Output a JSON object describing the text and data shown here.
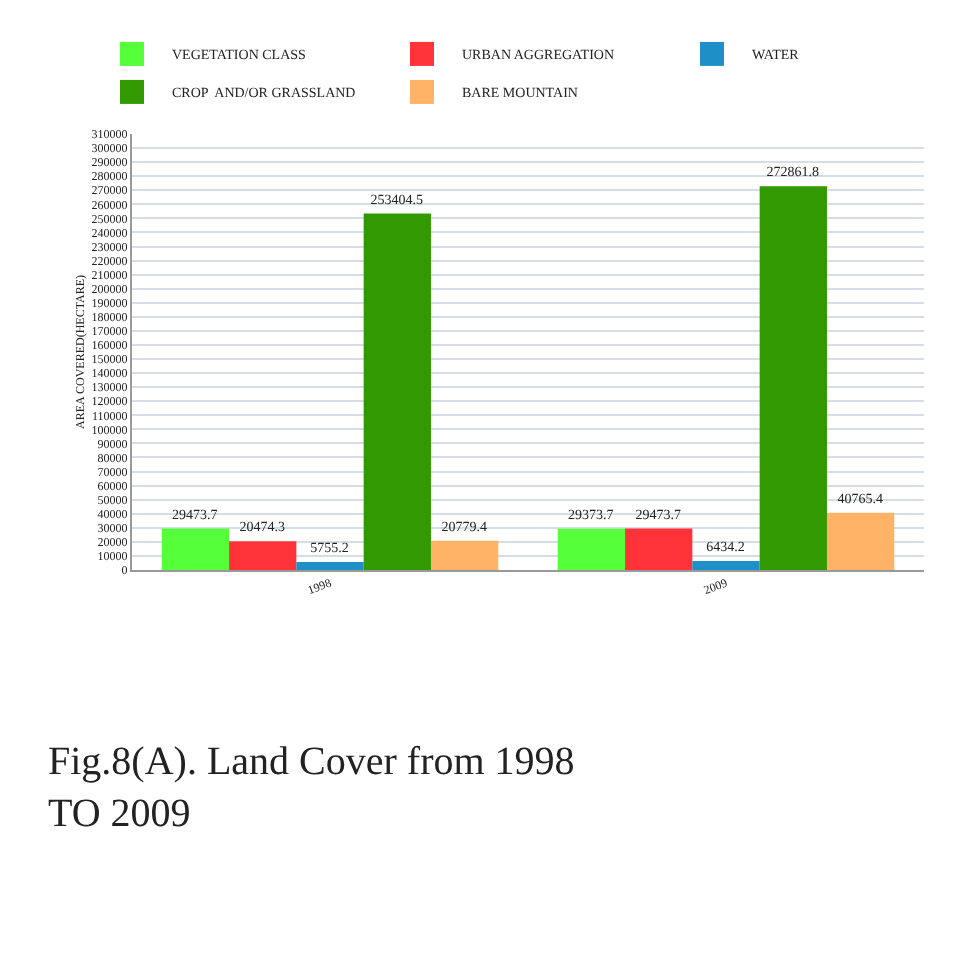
{
  "chart_data": {
    "type": "bar",
    "ylabel": "AREA COVERED(HECTARE)",
    "categories": [
      "1998",
      "2009"
    ],
    "series": [
      {
        "name": "VEGETATION CLASS",
        "color": "#55ff3a",
        "values": [
          29473.7,
          29373.7
        ]
      },
      {
        "name": "URBAN AGGREGATION",
        "color": "#ff3338",
        "values": [
          20474.3,
          29473.7
        ]
      },
      {
        "name": "WATER",
        "color": "#1f8fc8",
        "values": [
          5755.2,
          6434.2
        ]
      },
      {
        "name": "CROP  AND/OR GRASSLAND",
        "color": "#339900",
        "values": [
          253404.5,
          272861.8
        ]
      },
      {
        "name": "BARE MOUNTAIN",
        "color": "#ffb366",
        "values": [
          20779.4,
          40765.4
        ]
      }
    ],
    "ylim": [
      0,
      310000
    ],
    "yticks": [
      0,
      10000,
      20000,
      30000,
      40000,
      50000,
      60000,
      70000,
      80000,
      90000,
      100000,
      110000,
      120000,
      130000,
      140000,
      150000,
      160000,
      170000,
      180000,
      190000,
      200000,
      210000,
      220000,
      230000,
      240000,
      250000,
      260000,
      270000,
      280000,
      290000,
      300000,
      310000
    ],
    "grid": "y",
    "legend": "top left",
    "data_labels": true,
    "annotations": [
      "Fig.8(A). Land Cover from 1998 TO 2009"
    ]
  }
}
